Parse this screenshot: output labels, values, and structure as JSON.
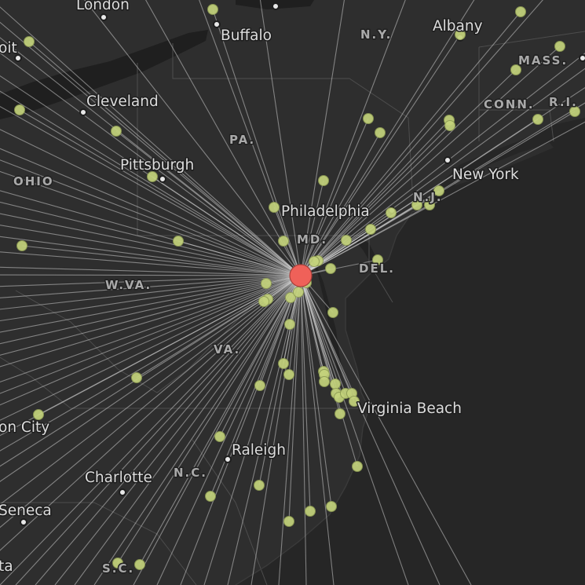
{
  "map": {
    "basemap_style": "dark",
    "colors": {
      "background": "#262626",
      "land": "#2e2e2e",
      "lake": "#1f1f1f",
      "route_line": "#d8d8d8",
      "endpoint": "#c4d37c",
      "hub": "#ef6159"
    }
  },
  "cities": [
    {
      "name": "London"
    },
    {
      "name": "Buffalo"
    },
    {
      "name": "Albany"
    },
    {
      "name": "oit"
    },
    {
      "name": "Cleveland"
    },
    {
      "name": "Pittsburgh"
    },
    {
      "name": "New York"
    },
    {
      "name": "Philadelphia"
    },
    {
      "name": "Virginia Beach"
    },
    {
      "name": "on City"
    },
    {
      "name": "Raleigh"
    },
    {
      "name": "Charlotte"
    },
    {
      "name": "Seneca"
    },
    {
      "name": "ta"
    }
  ],
  "states": [
    {
      "abbr": "N.Y."
    },
    {
      "abbr": "MASS."
    },
    {
      "abbr": "CONN."
    },
    {
      "abbr": "R.I."
    },
    {
      "abbr": "PA."
    },
    {
      "abbr": "OHIO"
    },
    {
      "abbr": "N.J."
    },
    {
      "abbr": "MD."
    },
    {
      "abbr": "DEL."
    },
    {
      "abbr": "W.VA."
    },
    {
      "abbr": "VA."
    },
    {
      "abbr": "N.C."
    },
    {
      "abbr": "S.C."
    }
  ]
}
